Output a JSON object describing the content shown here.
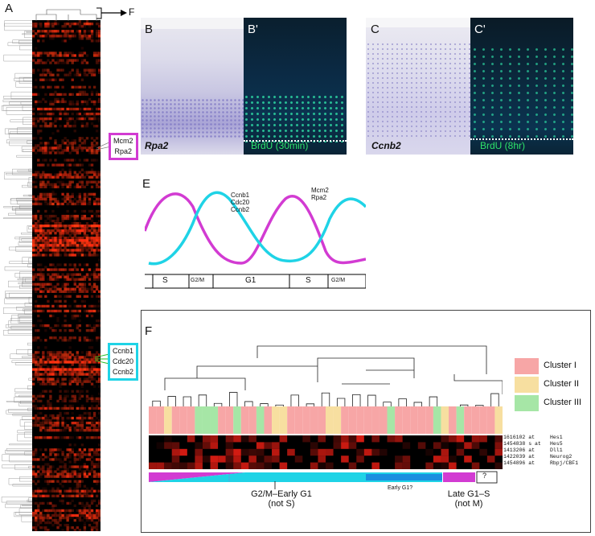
{
  "panels": {
    "A": "A",
    "B": "B",
    "B_prime": "B'",
    "C": "C",
    "C_prime": "C'",
    "E": "E",
    "F": "F",
    "F_arrow": "F"
  },
  "callouts": {
    "magenta": [
      "Mcm2",
      "Rpa2"
    ],
    "cyan": [
      "Ccnb1",
      "Cdc20",
      "Ccnb2"
    ]
  },
  "micrographs": {
    "B_label": "Rpa2",
    "B_prime_label": "BrdU (30min)",
    "C_label": "Ccnb2",
    "C_prime_label": "BrdU (8hr)"
  },
  "panelE": {
    "cyan_genes": [
      "Ccnb1",
      "Cdc20",
      "Ccnb2"
    ],
    "magenta_genes": [
      "Mcm2",
      "Rpa2"
    ],
    "phases": [
      "S",
      "G2/M",
      "G1",
      "S",
      "G2/M"
    ]
  },
  "panelF": {
    "legend": [
      "Cluster I",
      "Cluster II",
      "Cluster III"
    ],
    "probes": [
      "1616102 at",
      "1454838 s at",
      "1413206 at",
      "1422039 at",
      "1454896 at"
    ],
    "genes": [
      "Hes1",
      "Hes5",
      "Dll1",
      "Neurog2",
      "Rbpj/CBF1"
    ],
    "labels": [
      "G2/M–Early G1",
      "(not S)",
      "Early G1?",
      "Late G1–S",
      "(not M)",
      "?"
    ]
  },
  "colors": {
    "magenta": "#d23bd2",
    "cyan": "#1fd3e6",
    "heat_red": "#ff2a10",
    "cluster_I": "#f7a6a6",
    "cluster_II": "#f7dfa0",
    "cluster_III": "#a6e6a6"
  }
}
